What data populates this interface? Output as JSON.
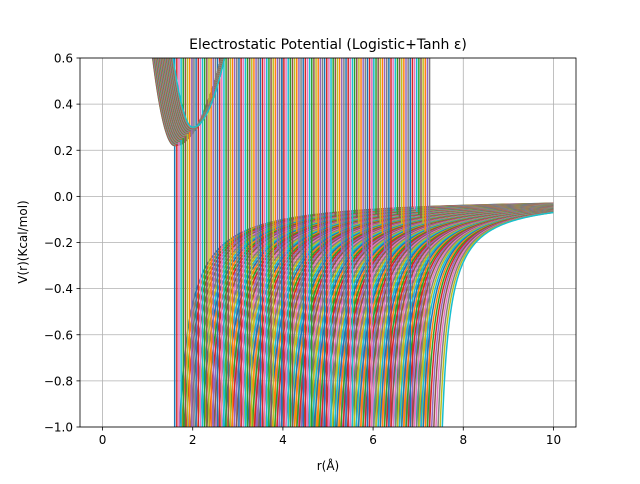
{
  "chart_data": {
    "type": "line",
    "title": "Electrostatic Potential (Logistic+Tanh ε)",
    "xlabel": "r(Å)",
    "ylabel": "V(r)(Kcal/mol)",
    "xlim": [
      -0.5,
      10.5
    ],
    "ylim": [
      -1.0,
      0.6
    ],
    "xticks": [
      0,
      2,
      4,
      6,
      8,
      10
    ],
    "xtick_labels": [
      "0",
      "2",
      "4",
      "6",
      "8",
      "10"
    ],
    "yticks": [
      -1.0,
      -0.8,
      -0.6,
      -0.4,
      -0.2,
      0.0,
      0.2,
      0.4,
      0.6
    ],
    "ytick_labels": [
      "−1.0",
      "−0.8",
      "−0.6",
      "−0.4",
      "−0.2",
      "0.0",
      "0.2",
      "0.4",
      "0.6"
    ],
    "grid": true,
    "legend": "none",
    "palette": [
      "#1f77b4",
      "#ff7f0e",
      "#2ca02c",
      "#d62728",
      "#9467bd",
      "#8c564b",
      "#e377c2",
      "#7f7f7f",
      "#bcbd22",
      "#17becf"
    ],
    "description_of_family": {
      "repulsive_branch": {
        "sign": "positive",
        "min_value_range": [
          0.22,
          0.3
        ],
        "min_r_range": [
          1.6,
          2.0
        ],
        "vertical_band_r_range": [
          1.6,
          7.3
        ]
      },
      "attractive_branch": {
        "sign": "negative",
        "onset_r_range": [
          1.6,
          7.5
        ],
        "value_at_r10_range": [
          -0.07,
          -0.03
        ],
        "r_end": 10
      },
      "approx_curve_count": 120
    }
  }
}
